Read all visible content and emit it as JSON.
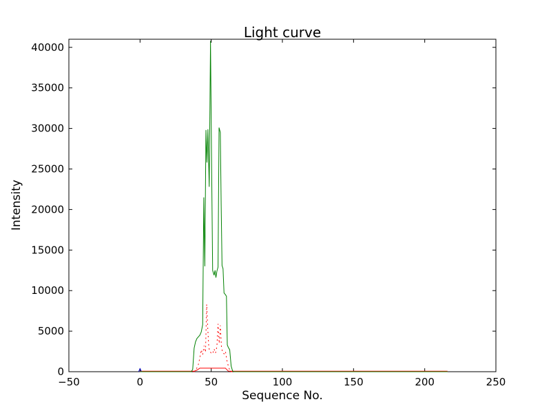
{
  "chart_data": {
    "type": "line",
    "title": "Light curve",
    "xlabel": "Sequence No.",
    "ylabel": "Intensity",
    "xlim": [
      -50,
      250
    ],
    "ylim": [
      0,
      41000
    ],
    "x_ticks": [
      -50,
      0,
      50,
      100,
      150,
      200,
      250
    ],
    "y_ticks": [
      0,
      5000,
      10000,
      15000,
      20000,
      25000,
      30000,
      35000,
      40000
    ],
    "grid": false,
    "legend": "none",
    "axis_color": "#000000",
    "background_color": "#ffffff",
    "series": [
      {
        "name": "red-solid-line",
        "color": "#ff0000",
        "style": "solid",
        "points": [
          [
            0,
            60
          ],
          [
            20,
            60
          ],
          [
            38,
            60
          ],
          [
            40,
            200
          ],
          [
            42,
            430
          ],
          [
            50,
            430
          ],
          [
            58,
            430
          ],
          [
            60,
            430
          ],
          [
            61,
            250
          ],
          [
            62,
            80
          ],
          [
            63,
            60
          ],
          [
            100,
            60
          ],
          [
            150,
            60
          ],
          [
            216,
            60
          ]
        ]
      },
      {
        "name": "blue-marker",
        "color": "#0000cc",
        "style": "solid",
        "points": [
          [
            -1,
            0
          ],
          [
            0,
            380
          ],
          [
            1,
            0
          ]
        ]
      },
      {
        "name": "red-dotted-line",
        "color": "#ff0000",
        "style": "dotted",
        "points": [
          [
            0,
            0
          ],
          [
            20,
            0
          ],
          [
            38,
            0
          ],
          [
            39,
            200
          ],
          [
            40,
            500
          ],
          [
            41,
            900
          ],
          [
            42,
            1700
          ],
          [
            43,
            2700
          ],
          [
            44,
            2100
          ],
          [
            45,
            3200
          ],
          [
            46,
            2400
          ],
          [
            46.8,
            8300
          ],
          [
            47.5,
            5600
          ],
          [
            48.3,
            3000
          ],
          [
            49,
            2500
          ],
          [
            50,
            2300
          ],
          [
            51,
            2200
          ],
          [
            52,
            2800
          ],
          [
            53,
            2300
          ],
          [
            54,
            3100
          ],
          [
            54.8,
            5900
          ],
          [
            55.6,
            3500
          ],
          [
            56.4,
            5700
          ],
          [
            57.2,
            3000
          ],
          [
            58,
            2400
          ],
          [
            59,
            2200
          ],
          [
            60,
            2500
          ],
          [
            61,
            1400
          ],
          [
            62,
            700
          ],
          [
            63,
            200
          ],
          [
            64,
            0
          ],
          [
            100,
            0
          ],
          [
            150,
            0
          ],
          [
            216,
            0
          ]
        ]
      },
      {
        "name": "green-line",
        "color": "#008000",
        "style": "solid",
        "points": [
          [
            0,
            0
          ],
          [
            20,
            0
          ],
          [
            30,
            0
          ],
          [
            36,
            0
          ],
          [
            37,
            300
          ],
          [
            38,
            2900
          ],
          [
            39,
            3700
          ],
          [
            40,
            4100
          ],
          [
            41,
            4300
          ],
          [
            42,
            4500
          ],
          [
            43,
            4900
          ],
          [
            44,
            5800
          ],
          [
            44.8,
            21500
          ],
          [
            45.5,
            13000
          ],
          [
            46.3,
            29800
          ],
          [
            47,
            25800
          ],
          [
            47.7,
            29900
          ],
          [
            48.6,
            22800
          ],
          [
            49.5,
            40800
          ],
          [
            50.3,
            25000
          ],
          [
            51,
            12500
          ],
          [
            52,
            11900
          ],
          [
            52.7,
            12500
          ],
          [
            53.3,
            11600
          ],
          [
            54,
            12400
          ],
          [
            54.8,
            12900
          ],
          [
            55.5,
            30100
          ],
          [
            56.4,
            29500
          ],
          [
            57,
            20500
          ],
          [
            57.6,
            13100
          ],
          [
            58.3,
            12700
          ],
          [
            59,
            9700
          ],
          [
            60,
            9500
          ],
          [
            60.7,
            9300
          ],
          [
            61.3,
            3300
          ],
          [
            62,
            3000
          ],
          [
            63,
            2700
          ],
          [
            64,
            700
          ],
          [
            65,
            100
          ],
          [
            66,
            0
          ],
          [
            100,
            0
          ],
          [
            150,
            0
          ],
          [
            216,
            0
          ]
        ]
      }
    ]
  }
}
